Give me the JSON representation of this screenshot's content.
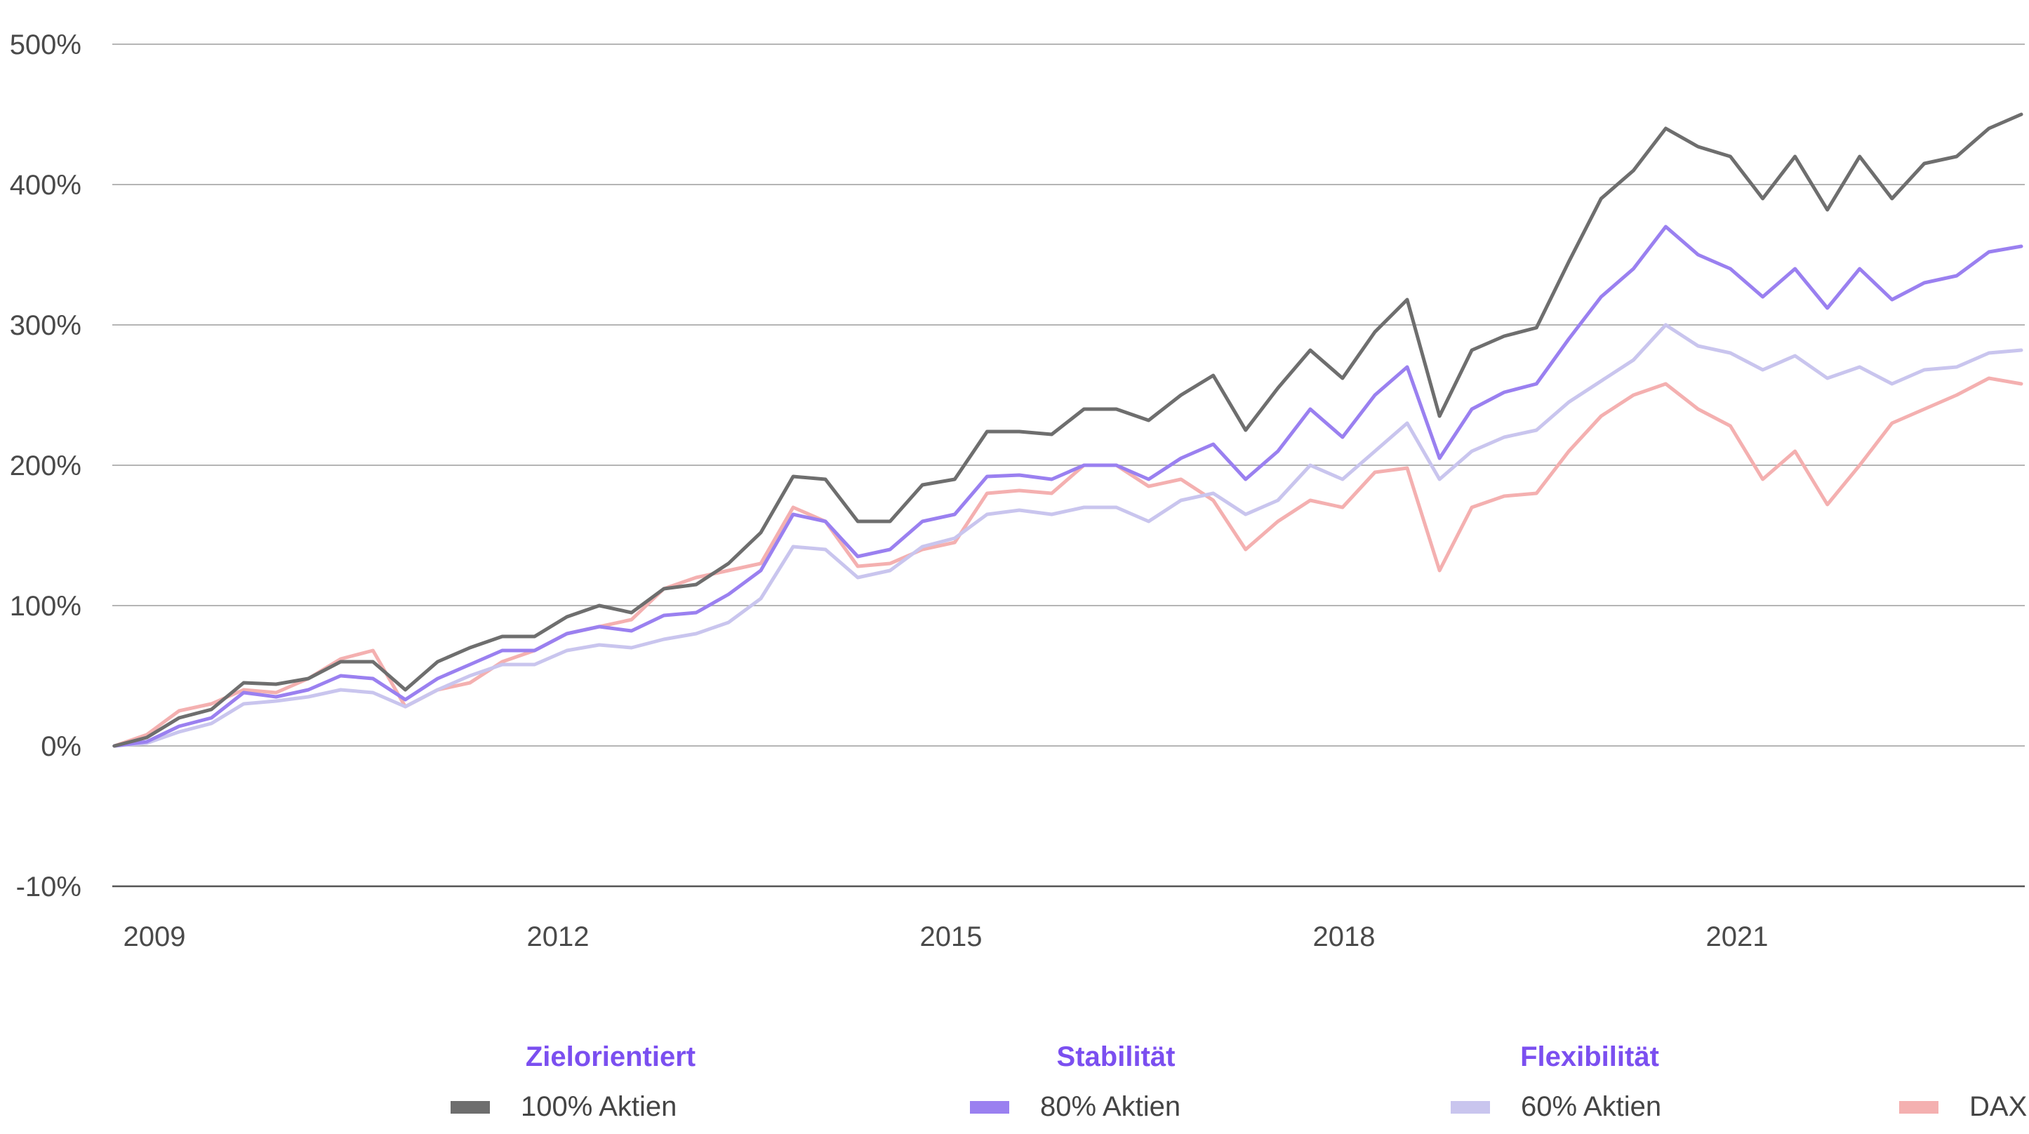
{
  "chart_data": {
    "type": "line",
    "y_ticks": [
      "500%",
      "400%",
      "300%",
      "200%",
      "100%",
      "0%",
      "-10%"
    ],
    "x_ticks": [
      "2009",
      "2012",
      "2015",
      "2018",
      "2021"
    ],
    "ylim": [
      -10,
      500
    ],
    "grid": true,
    "legend_placement": "bottom",
    "legend_groups": [
      {
        "title": "Zielorientiert",
        "series_index": 0
      },
      {
        "title": "Stabilität",
        "series_index": 1
      },
      {
        "title": "Flexibilität",
        "series_index": 2
      },
      {
        "title": "",
        "series_index": 3
      }
    ],
    "x": [
      "2008-12",
      "2009-03",
      "2009-06",
      "2009-09",
      "2009-12",
      "2010-03",
      "2010-06",
      "2010-09",
      "2010-12",
      "2011-03",
      "2011-06",
      "2011-09",
      "2011-12",
      "2012-03",
      "2012-06",
      "2012-09",
      "2012-12",
      "2013-03",
      "2013-06",
      "2013-09",
      "2013-12",
      "2014-03",
      "2014-06",
      "2014-09",
      "2014-12",
      "2015-03",
      "2015-06",
      "2015-09",
      "2015-12",
      "2016-03",
      "2016-06",
      "2016-09",
      "2016-12",
      "2017-03",
      "2017-06",
      "2017-09",
      "2017-12",
      "2018-03",
      "2018-06",
      "2018-09",
      "2018-12",
      "2019-03",
      "2019-06",
      "2019-09",
      "2019-12",
      "2020-03",
      "2020-06",
      "2020-09",
      "2020-12",
      "2021-03",
      "2021-06",
      "2021-09",
      "2021-12",
      "2022-03",
      "2022-06",
      "2022-09",
      "2022-12",
      "2023-03",
      "2023-06",
      "2023-09"
    ],
    "series": [
      {
        "name": "100% Aktien",
        "color": "#6e6e6e",
        "values": [
          0,
          6,
          20,
          26,
          45,
          44,
          48,
          60,
          60,
          40,
          60,
          70,
          78,
          78,
          92,
          100,
          95,
          112,
          115,
          130,
          152,
          192,
          190,
          160,
          160,
          186,
          190,
          224,
          224,
          222,
          240,
          240,
          232,
          250,
          264,
          225,
          255,
          282,
          262,
          295,
          318,
          235,
          282,
          292,
          298,
          345,
          390,
          410,
          440,
          427,
          420,
          390,
          420,
          382,
          420,
          390,
          415,
          420,
          440,
          450
        ]
      },
      {
        "name": "80% Aktien",
        "color": "#9a80f0",
        "values": [
          0,
          3,
          14,
          20,
          38,
          35,
          40,
          50,
          48,
          33,
          48,
          58,
          68,
          68,
          80,
          85,
          82,
          93,
          95,
          108,
          125,
          165,
          160,
          135,
          140,
          160,
          165,
          192,
          193,
          190,
          200,
          200,
          190,
          205,
          215,
          190,
          210,
          240,
          220,
          250,
          270,
          205,
          240,
          252,
          258,
          290,
          320,
          340,
          370,
          350,
          340,
          320,
          340,
          312,
          340,
          318,
          330,
          335,
          352,
          356
        ]
      },
      {
        "name": "60% Aktien",
        "color": "#c9c5ee",
        "values": [
          0,
          2,
          10,
          16,
          30,
          32,
          35,
          40,
          38,
          28,
          40,
          50,
          58,
          58,
          68,
          72,
          70,
          76,
          80,
          88,
          105,
          142,
          140,
          120,
          125,
          142,
          148,
          165,
          168,
          165,
          170,
          170,
          160,
          175,
          180,
          165,
          175,
          200,
          190,
          210,
          230,
          190,
          210,
          220,
          225,
          245,
          260,
          275,
          300,
          285,
          280,
          268,
          278,
          262,
          270,
          258,
          268,
          270,
          280,
          282
        ]
      },
      {
        "name": "DAX",
        "color": "#f4b0b0",
        "values": [
          0,
          8,
          25,
          30,
          40,
          38,
          48,
          62,
          68,
          28,
          40,
          45,
          60,
          68,
          80,
          85,
          90,
          112,
          120,
          125,
          130,
          170,
          160,
          128,
          130,
          140,
          145,
          180,
          182,
          180,
          200,
          200,
          185,
          190,
          175,
          140,
          160,
          175,
          170,
          195,
          198,
          125,
          170,
          178,
          180,
          210,
          235,
          250,
          258,
          240,
          228,
          190,
          210,
          172,
          200,
          230,
          240,
          250,
          262,
          258
        ]
      }
    ]
  }
}
